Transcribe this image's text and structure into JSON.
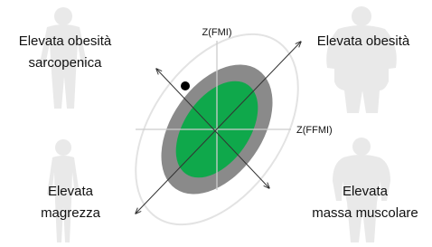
{
  "axes": {
    "y_label": "Z(FMI)",
    "x_label": "Z(FFMI)"
  },
  "quadrants": {
    "top_left": {
      "lines": [
        "Elevata obesità",
        "sarcopenica"
      ]
    },
    "top_right": {
      "lines": [
        "Elevata obesità"
      ]
    },
    "bottom_left": {
      "lines": [
        "Elevata",
        "magrezza"
      ]
    },
    "bottom_right": {
      "lines": [
        "Elevata",
        "massa muscolare"
      ]
    }
  }
}
